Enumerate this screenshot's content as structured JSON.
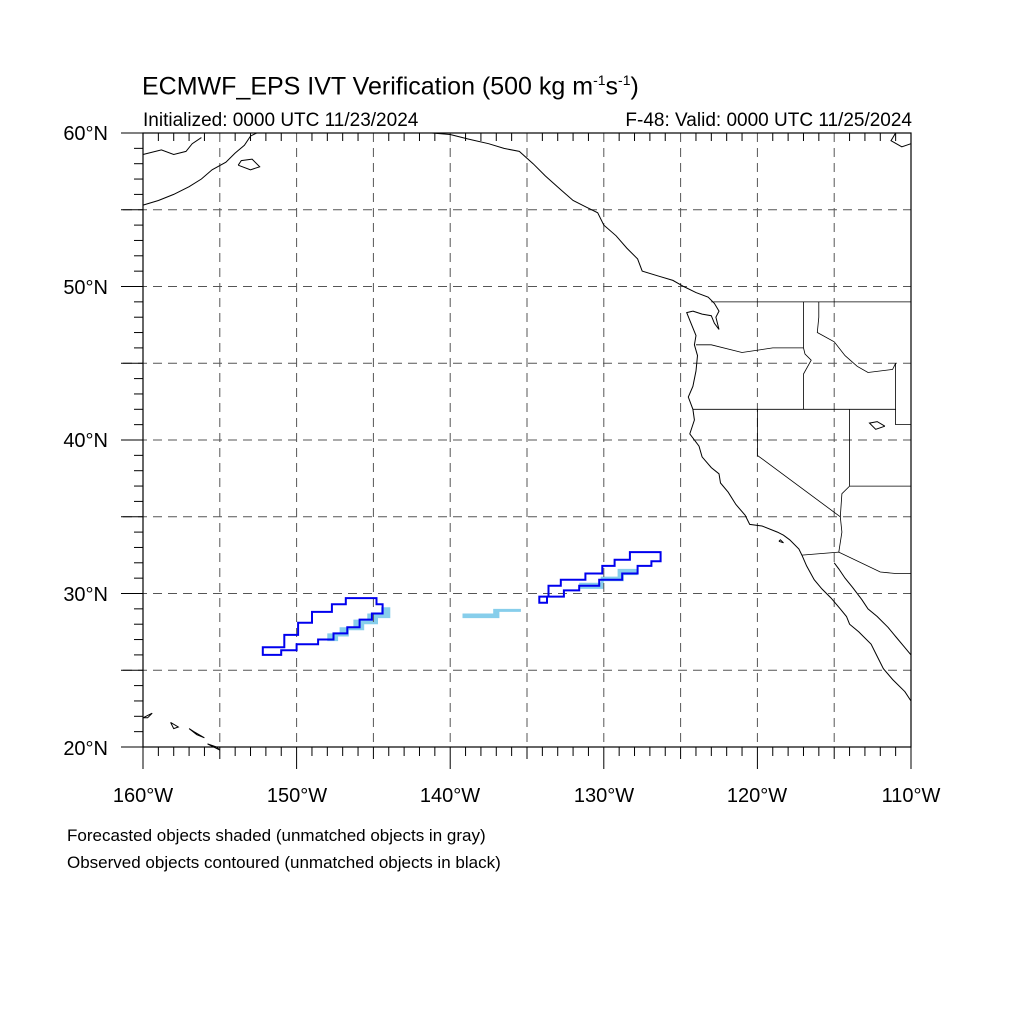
{
  "title": {
    "main": "ECMWF_EPS IVT Verification (500 kg m",
    "exp1": "-1",
    "mid": "s",
    "exp2": "-1",
    "end": ")"
  },
  "subtitle_left": "Initialized: 0000 UTC 11/23/2024",
  "subtitle_right": "F-48: Valid: 0000 UTC 11/25/2024",
  "axes": {
    "lat_labels": [
      "60°N",
      "50°N",
      "40°N",
      "30°N",
      "20°N"
    ],
    "lon_labels": [
      "160°W",
      "150°W",
      "140°W",
      "130°W",
      "120°W",
      "110°W"
    ]
  },
  "notes": [
    "Forecasted objects shaded (unmatched objects in gray)",
    "Observed objects contoured (unmatched objects in black)"
  ],
  "map": {
    "extent": {
      "lon": [
        -160,
        -110
      ],
      "lat": [
        20,
        60
      ]
    },
    "colors": {
      "forecast_matched": "#87ceeb",
      "observed_matched": "#0000ee",
      "coastline": "#000000",
      "grid": "#555555"
    },
    "observed_objects": [
      {
        "name": "observed-object-west",
        "points": [
          [
            -152.2,
            26.0
          ],
          [
            -152.2,
            26.5
          ],
          [
            -150.8,
            26.5
          ],
          [
            -150.8,
            27.3
          ],
          [
            -149.9,
            27.3
          ],
          [
            -149.9,
            28.1
          ],
          [
            -149.0,
            28.1
          ],
          [
            -149.0,
            28.8
          ],
          [
            -147.7,
            28.8
          ],
          [
            -147.7,
            29.3
          ],
          [
            -146.8,
            29.3
          ],
          [
            -146.8,
            29.7
          ],
          [
            -144.8,
            29.7
          ],
          [
            -144.8,
            29.3
          ],
          [
            -144.4,
            29.3
          ],
          [
            -144.4,
            28.7
          ],
          [
            -145.1,
            28.7
          ],
          [
            -145.1,
            28.3
          ],
          [
            -145.9,
            28.3
          ],
          [
            -145.9,
            27.8
          ],
          [
            -146.7,
            27.8
          ],
          [
            -146.7,
            27.4
          ],
          [
            -147.6,
            27.4
          ],
          [
            -147.6,
            27.0
          ],
          [
            -148.6,
            27.0
          ],
          [
            -148.6,
            26.7
          ],
          [
            -150.0,
            26.7
          ],
          [
            -150.0,
            26.3
          ],
          [
            -151.0,
            26.3
          ],
          [
            -151.0,
            26.0
          ]
        ]
      },
      {
        "name": "observed-object-east",
        "points": [
          [
            -134.2,
            29.4
          ],
          [
            -134.2,
            29.8
          ],
          [
            -133.6,
            29.8
          ],
          [
            -133.6,
            30.5
          ],
          [
            -132.8,
            30.5
          ],
          [
            -132.8,
            30.9
          ],
          [
            -131.2,
            30.9
          ],
          [
            -131.2,
            31.3
          ],
          [
            -130.1,
            31.3
          ],
          [
            -130.1,
            31.8
          ],
          [
            -129.3,
            31.8
          ],
          [
            -129.3,
            32.2
          ],
          [
            -128.3,
            32.2
          ],
          [
            -128.3,
            32.7
          ],
          [
            -126.3,
            32.7
          ],
          [
            -126.3,
            32.1
          ],
          [
            -126.9,
            32.1
          ],
          [
            -126.9,
            31.8
          ],
          [
            -127.8,
            31.8
          ],
          [
            -127.8,
            31.3
          ],
          [
            -128.8,
            31.3
          ],
          [
            -128.8,
            30.9
          ],
          [
            -130.3,
            30.9
          ],
          [
            -130.3,
            30.5
          ],
          [
            -131.6,
            30.5
          ],
          [
            -131.6,
            30.2
          ],
          [
            -132.6,
            30.2
          ],
          [
            -132.6,
            29.8
          ],
          [
            -133.7,
            29.8
          ],
          [
            -133.7,
            29.4
          ]
        ]
      }
    ],
    "forecast_objects": [
      {
        "name": "forecast-object-west",
        "points": [
          [
            -148.0,
            26.9
          ],
          [
            -148.0,
            27.4
          ],
          [
            -147.2,
            27.4
          ],
          [
            -147.2,
            27.8
          ],
          [
            -146.3,
            27.8
          ],
          [
            -146.3,
            28.3
          ],
          [
            -145.4,
            28.3
          ],
          [
            -145.4,
            28.7
          ],
          [
            -144.5,
            28.7
          ],
          [
            -144.5,
            29.1
          ],
          [
            -143.9,
            29.1
          ],
          [
            -143.9,
            28.4
          ],
          [
            -144.7,
            28.4
          ],
          [
            -144.7,
            28.0
          ],
          [
            -145.6,
            28.0
          ],
          [
            -145.6,
            27.6
          ],
          [
            -146.6,
            27.6
          ],
          [
            -146.6,
            27.2
          ],
          [
            -147.3,
            27.2
          ],
          [
            -147.3,
            26.9
          ]
        ]
      },
      {
        "name": "forecast-object-middle",
        "points": [
          [
            -139.2,
            28.4
          ],
          [
            -139.2,
            28.7
          ],
          [
            -137.2,
            28.7
          ],
          [
            -137.2,
            29.0
          ],
          [
            -135.4,
            29.0
          ],
          [
            -135.4,
            28.8
          ],
          [
            -136.8,
            28.8
          ],
          [
            -136.8,
            28.4
          ]
        ]
      },
      {
        "name": "forecast-object-east",
        "points": [
          [
            -131.6,
            30.3
          ],
          [
            -131.6,
            30.7
          ],
          [
            -130.2,
            30.7
          ],
          [
            -130.2,
            31.1
          ],
          [
            -129.1,
            31.1
          ],
          [
            -129.1,
            31.6
          ],
          [
            -127.8,
            31.6
          ],
          [
            -127.8,
            31.2
          ],
          [
            -128.7,
            31.2
          ],
          [
            -128.7,
            30.8
          ],
          [
            -130.0,
            30.8
          ],
          [
            -130.0,
            30.3
          ]
        ]
      }
    ],
    "coastlines": [
      [
        [
          -124.2,
          48.4
        ],
        [
          -124.6,
          48.3
        ],
        [
          -124.4,
          47.8
        ],
        [
          -124.0,
          46.8
        ],
        [
          -124.1,
          46.2
        ],
        [
          -123.9,
          45.5
        ],
        [
          -124.0,
          44.5
        ],
        [
          -124.2,
          43.5
        ],
        [
          -124.5,
          42.8
        ],
        [
          -124.2,
          42.0
        ],
        [
          -124.1,
          41.3
        ],
        [
          -124.4,
          40.4
        ],
        [
          -123.8,
          39.6
        ],
        [
          -123.6,
          38.9
        ],
        [
          -123.0,
          38.2
        ],
        [
          -122.5,
          37.8
        ],
        [
          -122.4,
          37.2
        ],
        [
          -121.9,
          36.6
        ],
        [
          -121.4,
          35.8
        ],
        [
          -120.8,
          35.1
        ],
        [
          -120.5,
          34.5
        ],
        [
          -119.7,
          34.4
        ],
        [
          -118.7,
          34.0
        ],
        [
          -118.3,
          33.8
        ],
        [
          -117.9,
          33.5
        ],
        [
          -117.3,
          32.9
        ],
        [
          -117.1,
          32.5
        ],
        [
          -116.8,
          31.8
        ],
        [
          -116.3,
          30.9
        ],
        [
          -115.8,
          30.3
        ],
        [
          -115.2,
          29.7
        ],
        [
          -114.6,
          29.0
        ],
        [
          -114.2,
          28.5
        ],
        [
          -114.0,
          28.0
        ],
        [
          -113.4,
          27.5
        ],
        [
          -112.6,
          26.7
        ],
        [
          -112.2,
          25.9
        ],
        [
          -111.8,
          25.1
        ],
        [
          -111.2,
          24.4
        ],
        [
          -110.4,
          23.6
        ],
        [
          -110.0,
          23.0
        ]
      ],
      [
        [
          -115.0,
          32.0
        ],
        [
          -114.7,
          31.6
        ],
        [
          -114.3,
          31.0
        ],
        [
          -113.8,
          30.4
        ],
        [
          -113.2,
          29.6
        ],
        [
          -112.8,
          29.0
        ],
        [
          -112.2,
          28.5
        ],
        [
          -111.5,
          27.8
        ],
        [
          -111.0,
          27.2
        ],
        [
          -110.5,
          26.6
        ],
        [
          -110.0,
          26.0
        ]
      ],
      [
        [
          -124.2,
          48.4
        ],
        [
          -123.6,
          48.2
        ],
        [
          -123.0,
          48.1
        ],
        [
          -122.8,
          47.6
        ],
        [
          -122.5,
          47.2
        ],
        [
          -122.7,
          48.0
        ],
        [
          -122.5,
          48.4
        ],
        [
          -122.8,
          48.9
        ],
        [
          -123.2,
          49.3
        ],
        [
          -124.0,
          49.6
        ],
        [
          -124.8,
          50.0
        ],
        [
          -125.5,
          50.4
        ],
        [
          -126.5,
          50.7
        ],
        [
          -127.5,
          51.0
        ],
        [
          -127.8,
          51.8
        ],
        [
          -128.5,
          52.5
        ],
        [
          -129.2,
          53.3
        ],
        [
          -130.0,
          54.0
        ],
        [
          -130.4,
          54.8
        ],
        [
          -131.2,
          55.2
        ],
        [
          -132.0,
          55.6
        ],
        [
          -132.8,
          56.3
        ],
        [
          -133.8,
          57.2
        ],
        [
          -134.6,
          58.0
        ],
        [
          -135.5,
          58.8
        ],
        [
          -136.5,
          59.0
        ],
        [
          -137.5,
          59.3
        ],
        [
          -138.8,
          59.6
        ],
        [
          -140.0,
          59.9
        ],
        [
          -141.2,
          60.0
        ]
      ],
      [
        [
          -160.0,
          55.3
        ],
        [
          -159.0,
          55.6
        ],
        [
          -158.0,
          56.0
        ],
        [
          -157.0,
          56.5
        ],
        [
          -156.2,
          57.0
        ],
        [
          -155.5,
          57.6
        ],
        [
          -154.6,
          58.1
        ],
        [
          -154.0,
          58.7
        ],
        [
          -153.4,
          59.2
        ],
        [
          -153.0,
          59.8
        ],
        [
          -152.6,
          60.0
        ]
      ],
      [
        [
          -160.0,
          58.6
        ],
        [
          -158.8,
          58.9
        ],
        [
          -158.0,
          58.6
        ],
        [
          -157.2,
          58.8
        ],
        [
          -156.8,
          59.3
        ],
        [
          -156.2,
          59.7
        ]
      ],
      [
        [
          -153.8,
          57.9
        ],
        [
          -153.0,
          57.6
        ],
        [
          -152.4,
          57.8
        ],
        [
          -152.9,
          58.3
        ],
        [
          -153.6,
          58.2
        ],
        [
          -153.8,
          57.9
        ]
      ],
      [
        [
          -110.0,
          59.3
        ],
        [
          -110.6,
          59.1
        ],
        [
          -111.3,
          59.5
        ],
        [
          -111.0,
          60.0
        ]
      ],
      [
        [
          -160.0,
          21.9
        ],
        [
          -159.4,
          22.2
        ],
        [
          -159.7,
          21.9
        ],
        [
          -160.0,
          21.9
        ]
      ],
      [
        [
          -158.2,
          21.6
        ],
        [
          -157.7,
          21.3
        ],
        [
          -158.0,
          21.2
        ],
        [
          -158.2,
          21.6
        ]
      ],
      [
        [
          -157.0,
          21.2
        ],
        [
          -156.5,
          20.8
        ],
        [
          -156.0,
          20.6
        ],
        [
          -156.7,
          21.0
        ],
        [
          -157.0,
          21.2
        ]
      ],
      [
        [
          -155.8,
          20.2
        ],
        [
          -155.0,
          19.8
        ],
        [
          -155.2,
          20.0
        ],
        [
          -155.8,
          20.2
        ]
      ],
      [
        [
          -118.6,
          33.4
        ],
        [
          -118.3,
          33.3
        ],
        [
          -118.5,
          33.5
        ],
        [
          -118.6,
          33.4
        ]
      ],
      [
        [
          -111.7,
          40.9
        ],
        [
          -112.2,
          41.2
        ],
        [
          -112.7,
          41.1
        ],
        [
          -112.3,
          40.7
        ],
        [
          -111.7,
          40.9
        ]
      ]
    ],
    "boundaries": [
      [
        [
          -123.0,
          49.0
        ],
        [
          -110.0,
          49.0
        ]
      ],
      [
        [
          -117.0,
          49.0
        ],
        [
          -117.0,
          46.0
        ],
        [
          -116.9,
          45.6
        ],
        [
          -116.5,
          45.2
        ],
        [
          -117.0,
          44.3
        ],
        [
          -117.0,
          42.0
        ]
      ],
      [
        [
          -124.0,
          46.2
        ],
        [
          -123.0,
          46.2
        ],
        [
          -121.0,
          45.7
        ],
        [
          -119.0,
          46.0
        ],
        [
          -117.0,
          46.0
        ]
      ],
      [
        [
          -124.2,
          42.0
        ],
        [
          -117.0,
          42.0
        ],
        [
          -111.0,
          42.0
        ]
      ],
      [
        [
          -120.0,
          42.0
        ],
        [
          -120.0,
          39.0
        ],
        [
          -114.6,
          35.0
        ],
        [
          -114.5,
          34.0
        ],
        [
          -114.7,
          32.7
        ]
      ],
      [
        [
          -117.1,
          32.5
        ],
        [
          -114.7,
          32.7
        ],
        [
          -112.0,
          31.4
        ],
        [
          -111.0,
          31.3
        ],
        [
          -110.0,
          31.3
        ]
      ],
      [
        [
          -114.0,
          42.0
        ],
        [
          -114.0,
          37.0
        ],
        [
          -114.5,
          36.5
        ],
        [
          -114.6,
          35.0
        ]
      ],
      [
        [
          -114.0,
          37.0
        ],
        [
          -110.0,
          37.0
        ]
      ],
      [
        [
          -111.0,
          45.0
        ],
        [
          -111.0,
          41.0
        ],
        [
          -110.0,
          41.0
        ]
      ],
      [
        [
          -116.0,
          49.0
        ],
        [
          -116.0,
          48.0
        ],
        [
          -116.1,
          47.0
        ],
        [
          -115.0,
          46.4
        ],
        [
          -114.3,
          45.5
        ],
        [
          -113.5,
          44.8
        ],
        [
          -112.8,
          44.4
        ],
        [
          -111.2,
          44.6
        ],
        [
          -111.0,
          45.0
        ]
      ]
    ]
  }
}
